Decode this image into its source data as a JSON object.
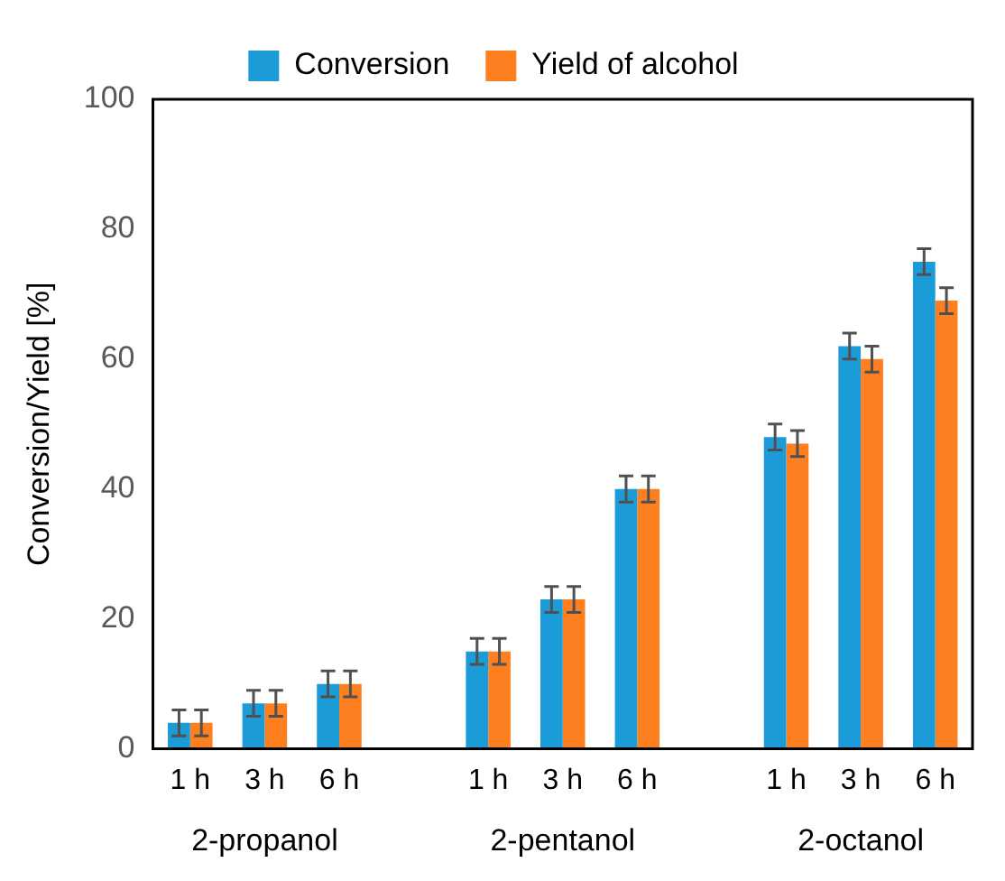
{
  "chart_data": {
    "type": "bar",
    "ylabel": "Conversion/Yield [%]",
    "categories": [
      "1 h",
      "3 h",
      "6 h",
      null,
      "1 h",
      "3 h",
      "6 h",
      null,
      "1 h",
      "3 h",
      "6 h"
    ],
    "series": [
      {
        "name": "Conversion",
        "color": "#1b9bd7",
        "values": [
          4,
          7,
          10,
          null,
          15,
          23,
          40,
          null,
          48,
          62,
          75
        ],
        "errors": [
          2,
          2,
          2,
          null,
          2,
          2,
          2,
          null,
          2,
          2,
          2
        ]
      },
      {
        "name": "Yield of alcohol",
        "color": "#fd7f20",
        "values": [
          4,
          7,
          10,
          null,
          15,
          23,
          40,
          null,
          47,
          60,
          69
        ],
        "errors": [
          2,
          2,
          2,
          null,
          2,
          2,
          2,
          null,
          2,
          2,
          2
        ]
      }
    ],
    "annotations": [
      "2-propanol",
      "2-pentanol",
      "2-octanol"
    ],
    "ylim": [
      0,
      100
    ],
    "yticks": [
      0,
      20,
      40,
      60,
      80,
      100
    ],
    "grid": false,
    "legend": "top"
  }
}
